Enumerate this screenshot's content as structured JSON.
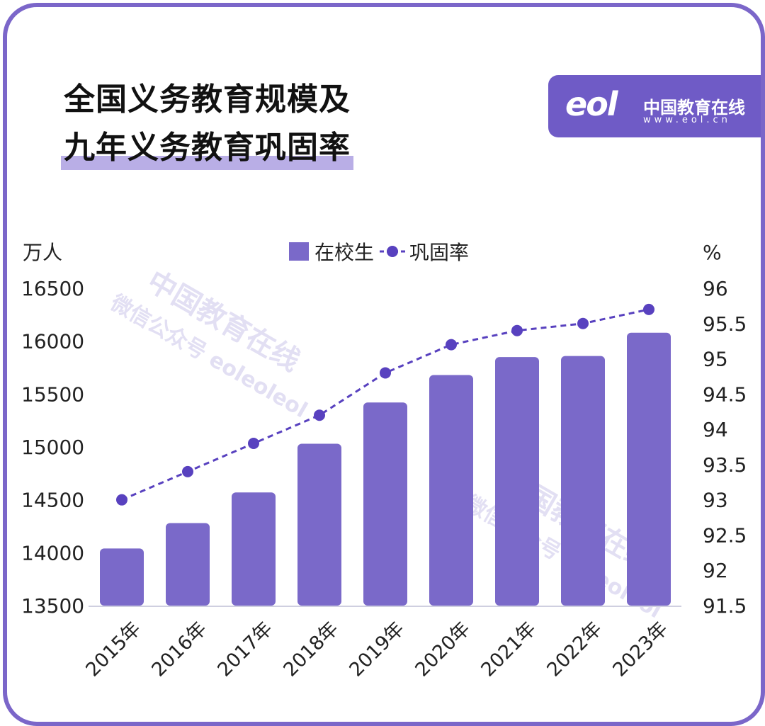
{
  "title_lines": [
    "全国义务教育规模及",
    "九年义务教育巩固率"
  ],
  "logo": {
    "mark": "eol",
    "name": "中国教育在线",
    "url": "www.eol.cn",
    "color": "#6f5bc6"
  },
  "watermark": {
    "line1": "中国教育在线",
    "line2": "微信公众号 eoleoleol"
  },
  "chart_data": {
    "type": "bar+line",
    "categories": [
      "2015年",
      "2016年",
      "2017年",
      "2018年",
      "2019年",
      "2020年",
      "2021年",
      "2022年",
      "2023年"
    ],
    "series": [
      {
        "name": "在校生",
        "type": "bar",
        "axis": "left",
        "color": "#7a69c9",
        "values": [
          14040,
          14280,
          14570,
          15030,
          15420,
          15680,
          15850,
          15860,
          16080
        ]
      },
      {
        "name": "巩固率",
        "type": "line",
        "axis": "right",
        "color": "#5841bf",
        "dashed": true,
        "values": [
          93.0,
          93.4,
          93.8,
          94.2,
          94.8,
          95.2,
          95.4,
          95.5,
          95.7
        ]
      }
    ],
    "left_axis": {
      "unit": "万人",
      "range": [
        13500,
        16500
      ],
      "ticks": [
        "16500",
        "16000",
        "15500",
        "15000",
        "14500",
        "14000",
        "13500"
      ]
    },
    "right_axis": {
      "unit": "%",
      "range": [
        91.5,
        96
      ],
      "ticks": [
        "96",
        "95.5",
        "95",
        "94.5",
        "94",
        "93.5",
        "93",
        "92.5",
        "92",
        "91.5"
      ]
    },
    "legend_placement": "top-center",
    "grid": false
  }
}
